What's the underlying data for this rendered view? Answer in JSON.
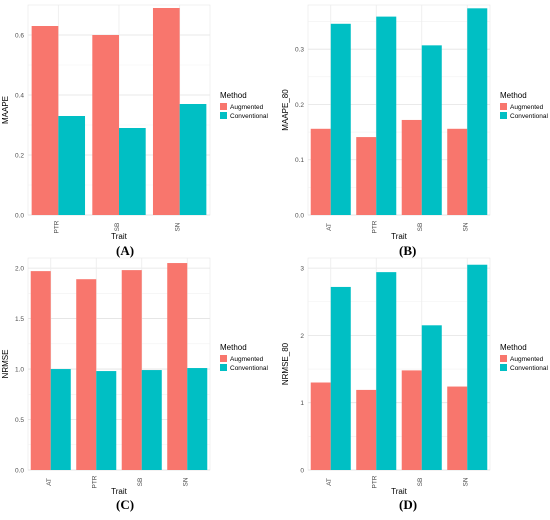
{
  "legend": {
    "title": "Method",
    "items": [
      {
        "label": "Augmented",
        "color": "#F8766D"
      },
      {
        "label": "Conventional",
        "color": "#00BFC4"
      }
    ]
  },
  "chart_data": [
    {
      "type": "bar",
      "caption": "(A)",
      "xlabel": "Trait",
      "ylabel": "MAAPE",
      "categories": [
        "PTR",
        "SB",
        "SN"
      ],
      "ylim": [
        0,
        0.7
      ],
      "yticks": [
        0.0,
        0.2,
        0.4,
        0.6
      ],
      "ytick_labels": [
        "0.0",
        "0.2",
        "0.4",
        "0.6"
      ],
      "grid": true,
      "legend_position": "right",
      "series": [
        {
          "name": "Augmented",
          "values": [
            0.63,
            0.6,
            0.69
          ]
        },
        {
          "name": "Conventional",
          "values": [
            0.33,
            0.29,
            0.37
          ]
        }
      ]
    },
    {
      "type": "bar",
      "caption": "(B)",
      "xlabel": "Trait",
      "ylabel": "MAAPE_80",
      "categories": [
        "AT",
        "PTR",
        "SB",
        "SN"
      ],
      "ylim": [
        0,
        0.38
      ],
      "yticks": [
        0.0,
        0.1,
        0.2,
        0.3
      ],
      "ytick_labels": [
        "0.0",
        "0.1",
        "0.2",
        "0.3"
      ],
      "grid": true,
      "legend_position": "right",
      "series": [
        {
          "name": "Augmented",
          "values": [
            0.156,
            0.141,
            0.172,
            0.156
          ]
        },
        {
          "name": "Conventional",
          "values": [
            0.346,
            0.359,
            0.307,
            0.374
          ]
        }
      ]
    },
    {
      "type": "bar",
      "caption": "(C)",
      "xlabel": "Trait",
      "ylabel": "NRMSE",
      "categories": [
        "AT",
        "PTR",
        "SB",
        "SN"
      ],
      "ylim": [
        0,
        2.1
      ],
      "yticks": [
        0.0,
        0.5,
        1.0,
        1.5,
        2.0
      ],
      "ytick_labels": [
        "0.0",
        "0.5",
        "1.0",
        "1.5",
        "2.0"
      ],
      "grid": true,
      "legend_position": "right",
      "series": [
        {
          "name": "Augmented",
          "values": [
            1.97,
            1.89,
            1.98,
            2.05
          ]
        },
        {
          "name": "Conventional",
          "values": [
            1.0,
            0.98,
            0.99,
            1.01
          ]
        }
      ]
    },
    {
      "type": "bar",
      "caption": "(D)",
      "xlabel": "Trait",
      "ylabel": "NRMSE_80",
      "categories": [
        "AT",
        "PTR",
        "SB",
        "SN"
      ],
      "ylim": [
        0,
        3.15
      ],
      "yticks": [
        0,
        1,
        2,
        3
      ],
      "ytick_labels": [
        "0",
        "1",
        "2",
        "3"
      ],
      "grid": true,
      "legend_position": "right",
      "series": [
        {
          "name": "Augmented",
          "values": [
            1.3,
            1.19,
            1.48,
            1.24
          ]
        },
        {
          "name": "Conventional",
          "values": [
            2.72,
            2.94,
            2.15,
            3.05
          ]
        }
      ]
    }
  ]
}
